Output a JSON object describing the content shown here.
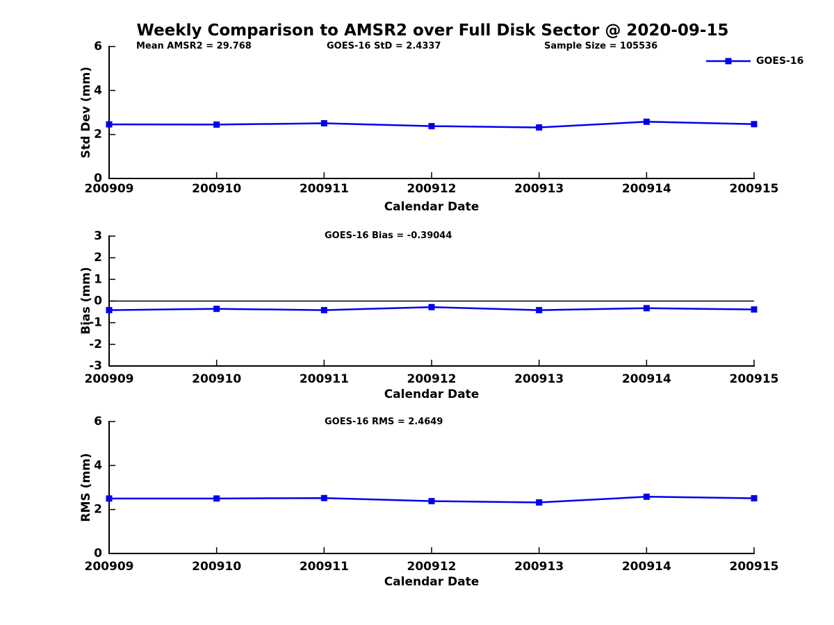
{
  "page": {
    "title": "Weekly Comparison to AMSR2 over Full Disk Sector @ 2020-09-15"
  },
  "colors": {
    "series": "#0000ee",
    "axis": "#000000",
    "zero_line": "#000000",
    "background": "#ffffff",
    "text": "#000000"
  },
  "legend": {
    "position": "top-right",
    "entries": [
      {
        "label": "GOES-16",
        "color": "#0000ee",
        "marker": "square"
      }
    ]
  },
  "chart_data": [
    {
      "type": "line",
      "name": "std-dev",
      "xlabel": "Calendar Date",
      "ylabel": "Std Dev (mm)",
      "ylim": [
        0,
        6
      ],
      "yticks": [
        0,
        2,
        4,
        6
      ],
      "grid": false,
      "zero_line": false,
      "categories": [
        "200909",
        "200910",
        "200911",
        "200912",
        "200913",
        "200914",
        "200915"
      ],
      "series": [
        {
          "name": "GOES-16",
          "values": [
            2.46,
            2.45,
            2.51,
            2.38,
            2.32,
            2.58,
            2.47
          ]
        }
      ],
      "annotations": [
        "Mean AMSR2 = 29.768",
        "GOES-16 StD = 2.4337",
        "Sample Size = 105536"
      ]
    },
    {
      "type": "line",
      "name": "bias",
      "xlabel": "Calendar Date",
      "ylabel": "Bias (mm)",
      "ylim": [
        -3,
        3
      ],
      "yticks": [
        3,
        2,
        1,
        0,
        -1,
        -2,
        -3
      ],
      "grid": false,
      "zero_line": true,
      "categories": [
        "200909",
        "200910",
        "200911",
        "200912",
        "200913",
        "200914",
        "200915"
      ],
      "series": [
        {
          "name": "GOES-16",
          "values": [
            -0.42,
            -0.36,
            -0.42,
            -0.28,
            -0.42,
            -0.33,
            -0.39
          ]
        }
      ],
      "annotations": [
        "GOES-16 Bias  = -0.39044"
      ]
    },
    {
      "type": "line",
      "name": "rms",
      "xlabel": "Calendar Date",
      "ylabel": "RMS (mm)",
      "ylim": [
        0,
        6
      ],
      "yticks": [
        0,
        2,
        4,
        6
      ],
      "grid": false,
      "zero_line": false,
      "categories": [
        "200909",
        "200910",
        "200911",
        "200912",
        "200913",
        "200914",
        "200915"
      ],
      "series": [
        {
          "name": "GOES-16",
          "values": [
            2.5,
            2.5,
            2.52,
            2.38,
            2.32,
            2.58,
            2.51
          ]
        }
      ],
      "annotations": [
        "GOES-16 RMS = 2.4649"
      ]
    }
  ]
}
